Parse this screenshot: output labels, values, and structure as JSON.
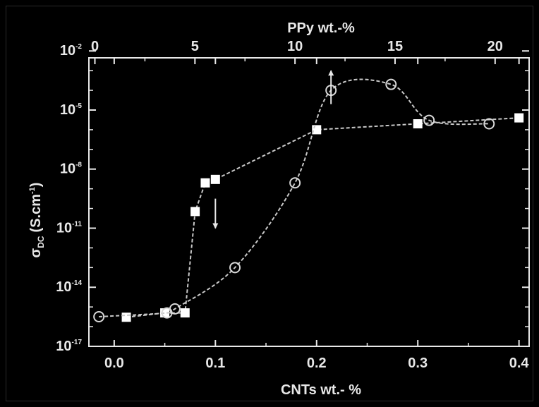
{
  "chart_data": {
    "type": "scatter",
    "top_axis": {
      "label": "PPy wt.-%",
      "ticks": [
        0,
        5,
        10,
        15,
        20
      ],
      "tick_labels": [
        "0",
        "5",
        "10",
        "15",
        "20"
      ],
      "range": [
        -0.3,
        21.7
      ]
    },
    "x_axis": {
      "label": "CNTs wt.- %",
      "ticks": [
        0.0,
        0.1,
        0.2,
        0.3,
        0.4
      ],
      "tick_labels": [
        "0.0",
        "0.1",
        "0.2",
        "0.3",
        "0.4"
      ],
      "range": [
        -0.025,
        0.41
      ]
    },
    "y_axis": {
      "label_main": "σ",
      "label_sub": "DC",
      "label_unit": "(S.cm",
      "label_unit_sup": "-1",
      "label_unit_close": ")",
      "scale": "log",
      "range_exp": [
        -17,
        -2.35
      ],
      "ticks_exp": [
        -17,
        -14,
        -11,
        -8,
        -5,
        -2
      ],
      "tick_base": "10",
      "tick_exps": [
        "-17",
        "-14",
        "-11",
        "-8",
        "-5",
        "-2"
      ]
    },
    "series": [
      {
        "marker": "square-filled",
        "axis": "bottom",
        "points": [
          {
            "x": 0.012,
            "y": 3e-16
          },
          {
            "x": 0.05,
            "y": 5e-16
          },
          {
            "x": 0.07,
            "y": 5e-16
          },
          {
            "x": 0.08,
            "y": 7e-11
          },
          {
            "x": 0.09,
            "y": 2e-09
          },
          {
            "x": 0.1,
            "y": 3e-09
          },
          {
            "x": 0.2,
            "y": 1e-06
          },
          {
            "x": 0.3,
            "y": 2e-06
          },
          {
            "x": 0.4,
            "y": 4e-06
          }
        ]
      },
      {
        "marker": "circle-open",
        "axis": "top",
        "points": [
          {
            "x": 0.2,
            "y": 3.2e-16
          },
          {
            "x": 3.6,
            "y": 5e-16
          },
          {
            "x": 4.0,
            "y": 8e-16
          },
          {
            "x": 7.0,
            "y": 1e-13
          },
          {
            "x": 10.0,
            "y": 2e-09
          },
          {
            "x": 11.8,
            "y": 0.0001
          },
          {
            "x": 14.8,
            "y": 0.0002
          },
          {
            "x": 16.7,
            "y": 3e-06
          },
          {
            "x": 19.7,
            "y": 2e-06
          }
        ]
      }
    ],
    "annotations": [
      {
        "type": "arrow-down",
        "x": 0.1,
        "x_axis": "bottom",
        "from_exp": -9.5,
        "to_exp": -11.0
      },
      {
        "type": "arrow-up",
        "x": 11.8,
        "x_axis": "top",
        "from_exp": -4.7,
        "to_exp": -3.0
      }
    ],
    "colors": {
      "background": "#000000",
      "foreground": "#e8e8e8",
      "marker_fill": "#ffffff",
      "line": "#c8c8c8"
    }
  }
}
